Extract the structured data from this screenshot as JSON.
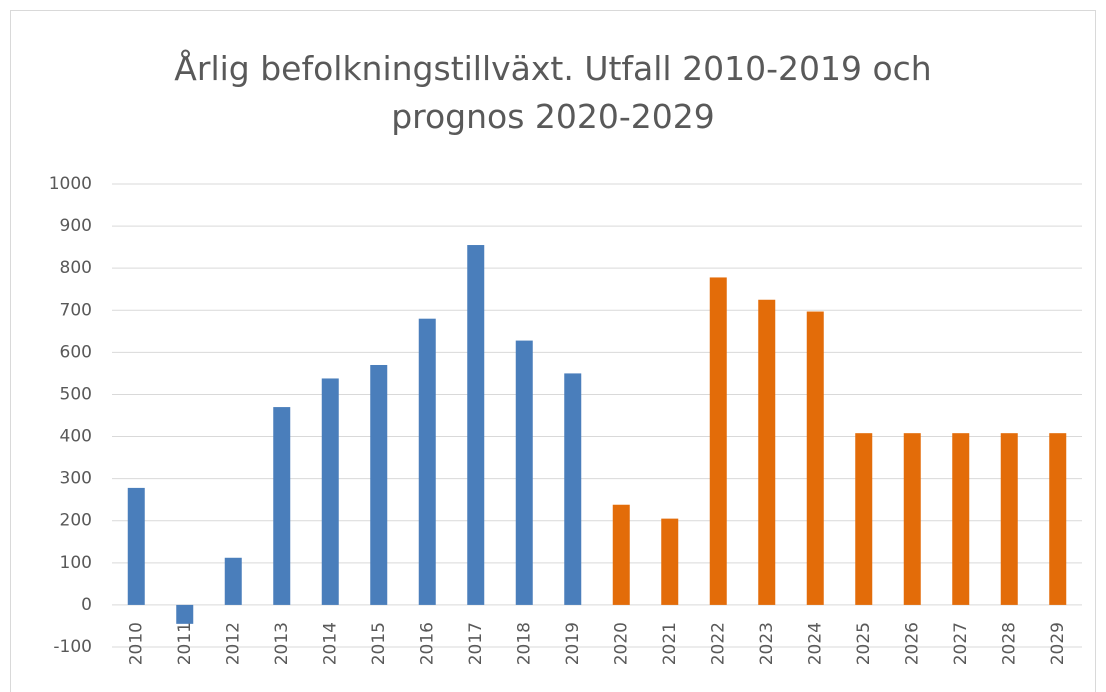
{
  "chart_data": {
    "type": "bar",
    "title": "Årlig befolkningstillväxt. Utfall 2010-2019 och prognos 2020-2029",
    "categories": [
      "2010",
      "2011",
      "2012",
      "2013",
      "2014",
      "2015",
      "2016",
      "2017",
      "2018",
      "2019",
      "2020",
      "2021",
      "2022",
      "2023",
      "2024",
      "2025",
      "2026",
      "2027",
      "2028",
      "2029"
    ],
    "values": [
      278,
      -45,
      112,
      470,
      538,
      570,
      680,
      855,
      628,
      550,
      238,
      205,
      778,
      725,
      697,
      408,
      408,
      408,
      408,
      408
    ],
    "colors": [
      "#4a7ebb",
      "#4a7ebb",
      "#4a7ebb",
      "#4a7ebb",
      "#4a7ebb",
      "#4a7ebb",
      "#4a7ebb",
      "#4a7ebb",
      "#4a7ebb",
      "#4a7ebb",
      "#e36c09",
      "#e36c09",
      "#e36c09",
      "#e36c09",
      "#e36c09",
      "#e36c09",
      "#e36c09",
      "#e36c09",
      "#e36c09",
      "#e36c09"
    ],
    "ylim": [
      -100,
      1000
    ],
    "yticks": [
      -100,
      0,
      100,
      200,
      300,
      400,
      500,
      600,
      700,
      800,
      900,
      1000
    ],
    "grid": true
  }
}
